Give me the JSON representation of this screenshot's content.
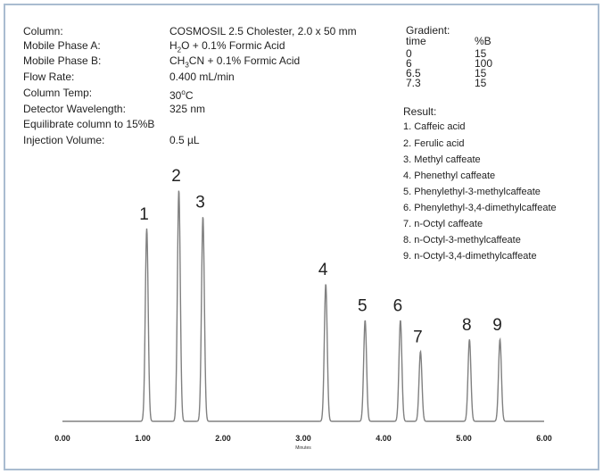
{
  "conditions": {
    "column_label": "Column:",
    "column_value": "COSMOSIL 2.5 Cholester, 2.0 x 50 mm",
    "mpa_label": "Mobile Phase A:",
    "mpa_prefix": "H",
    "mpa_sub": "2",
    "mpa_suffix": "O + 0.1% Formic Acid",
    "mpb_label": "Mobile Phase B:",
    "mpb_prefix": "CH",
    "mpb_sub": "3",
    "mpb_suffix": "CN + 0.1% Formic Acid",
    "flow_label": "Flow Rate:",
    "flow_value": "0.400  mL/min",
    "temp_label": "Column Temp:",
    "temp_value": "30",
    "temp_sup": "o",
    "temp_unit": "C",
    "det_label": "Detector Wavelength:",
    "det_value": "325 nm",
    "equil_text": "Equilibrate column to 15%B",
    "inj_label": "Injection Volume:",
    "inj_value": "0.5 µL"
  },
  "gradient": {
    "title": "Gradient:",
    "col_time": "time",
    "col_b": "%B",
    "rows": [
      {
        "time": "0",
        "b": "15"
      },
      {
        "time": "6",
        "b": "100"
      },
      {
        "time": "6.5",
        "b": "15"
      },
      {
        "time": "7.3",
        "b": "15"
      }
    ]
  },
  "result": {
    "title": "Result:",
    "items": [
      "1. Caffeic acid",
      "2. Ferulic acid",
      "3. Methyl caffeate",
      "4. Phenethyl caffeate",
      "5. Phenylethyl-3-methylcaffeate",
      "6. Phenylethyl-3,4-dimethylcaffeate",
      "7. n-Octyl caffeate",
      "8. n-Octyl-3-methylcaffeate",
      "9. n-Octyl-3,4-dimethylcaffeate"
    ]
  },
  "colors": {
    "trace": "#808080",
    "border": "#a9bcd0",
    "text": "#222222"
  },
  "chart_data": {
    "type": "line",
    "xlabel": "Minutes",
    "ylabel": "",
    "xlim": [
      0,
      6
    ],
    "ylim": [
      0,
      100
    ],
    "x_ticks": [
      "0.00",
      "1.00",
      "2.00",
      "3.00",
      "4.00",
      "5.00",
      "6.00"
    ],
    "peaks": [
      {
        "label": "1",
        "time": 1.05,
        "height": 80
      },
      {
        "label": "2",
        "time": 1.45,
        "height": 96
      },
      {
        "label": "3",
        "time": 1.75,
        "height": 85
      },
      {
        "label": "4",
        "time": 3.28,
        "height": 57
      },
      {
        "label": "5",
        "time": 3.77,
        "height": 42
      },
      {
        "label": "6",
        "time": 4.21,
        "height": 42
      },
      {
        "label": "7",
        "time": 4.46,
        "height": 29
      },
      {
        "label": "8",
        "time": 5.07,
        "height": 34
      },
      {
        "label": "9",
        "time": 5.45,
        "height": 34
      }
    ]
  }
}
